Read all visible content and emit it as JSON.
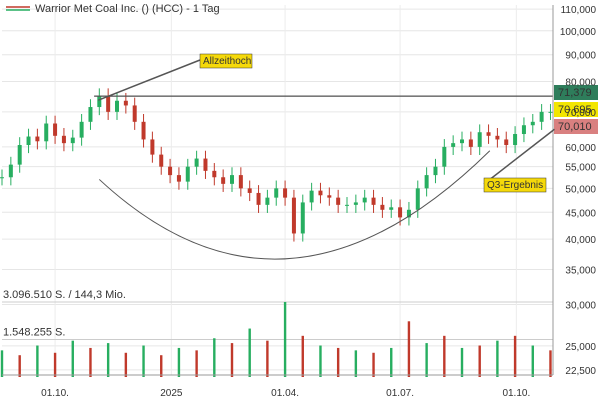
{
  "chart_data": {
    "type": "candlestick",
    "title": "Warrior Met Coal Inc. () (HCC) - 1 Tag",
    "y_axis": {
      "scale": "log",
      "ticks": [
        "110,000",
        "100,000",
        "90,000",
        "80,000",
        "70,000",
        "60,000",
        "55,000",
        "50,000",
        "45,000",
        "40,000",
        "35,000",
        "30,000",
        "25,000",
        "22,500"
      ],
      "tick_values": [
        110,
        100,
        90,
        80,
        70,
        60,
        55,
        50,
        45,
        40,
        35,
        30,
        25,
        22.5
      ],
      "ylim": [
        22,
        112
      ]
    },
    "x_axis": {
      "ticks": [
        "01.10.",
        "2025",
        "01.04.",
        "01.07.",
        "01.10."
      ],
      "tick_dates": [
        "2024-10-01",
        "2025-01-01",
        "2025-04-01",
        "2025-07-01",
        "2025-10-01"
      ],
      "range": [
        "2024-08-20",
        "2025-10-30"
      ]
    },
    "price_series": {
      "name": "HCC",
      "x": [
        "2024-08-20",
        "2024-08-27",
        "2024-09-03",
        "2024-09-10",
        "2024-09-17",
        "2024-09-24",
        "2024-10-01",
        "2024-10-08",
        "2024-10-15",
        "2024-10-22",
        "2024-10-29",
        "2024-11-05",
        "2024-11-12",
        "2024-11-19",
        "2024-11-26",
        "2024-12-03",
        "2024-12-10",
        "2024-12-17",
        "2024-12-24",
        "2024-12-31",
        "2025-01-07",
        "2025-01-14",
        "2025-01-21",
        "2025-01-28",
        "2025-02-04",
        "2025-02-11",
        "2025-02-18",
        "2025-02-25",
        "2025-03-04",
        "2025-03-11",
        "2025-03-18",
        "2025-03-25",
        "2025-04-01",
        "2025-04-08",
        "2025-04-15",
        "2025-04-22",
        "2025-04-29",
        "2025-05-06",
        "2025-05-13",
        "2025-05-20",
        "2025-05-27",
        "2025-06-03",
        "2025-06-10",
        "2025-06-17",
        "2025-06-24",
        "2025-07-01",
        "2025-07-08",
        "2025-07-15",
        "2025-07-22",
        "2025-07-29",
        "2025-08-05",
        "2025-08-12",
        "2025-08-19",
        "2025-08-26",
        "2025-09-02",
        "2025-09-09",
        "2025-09-16",
        "2025-09-23",
        "2025-09-30",
        "2025-10-07",
        "2025-10-14",
        "2025-10-21",
        "2025-10-28"
      ],
      "close": [
        52.5,
        55.5,
        60.5,
        62.8,
        61.5,
        66.5,
        63,
        61,
        62.5,
        67,
        71.5,
        75,
        70,
        73.5,
        72,
        67,
        62,
        58,
        55,
        53,
        51.5,
        55,
        57,
        54,
        52.5,
        51,
        53,
        50,
        49,
        46.5,
        48,
        50,
        48,
        41,
        47,
        49.5,
        48.5,
        48,
        46.5,
        46.5,
        47,
        48,
        46.5,
        45.5,
        46,
        44,
        45.5,
        50,
        53,
        55,
        60,
        61,
        62,
        60,
        64,
        63,
        62,
        60.5,
        63.5,
        66,
        67,
        70,
        70
      ]
    },
    "volume_axis": {
      "ticks": [
        "3.096.510 S. / 144,3 Mio.",
        "1.548.255 S."
      ],
      "tick_values": [
        3096510,
        1548255
      ]
    },
    "volume_series": {
      "x": [
        "2024-08-20",
        "2024-09-03",
        "2024-09-17",
        "2024-10-01",
        "2024-10-15",
        "2024-10-29",
        "2024-11-12",
        "2024-11-26",
        "2024-12-10",
        "2024-12-24",
        "2025-01-07",
        "2025-01-21",
        "2025-02-04",
        "2025-02-18",
        "2025-03-04",
        "2025-03-18",
        "2025-04-01",
        "2025-04-15",
        "2025-04-29",
        "2025-05-13",
        "2025-05-27",
        "2025-06-10",
        "2025-06-24",
        "2025-07-08",
        "2025-07-22",
        "2025-08-05",
        "2025-08-19",
        "2025-09-02",
        "2025-09-16",
        "2025-09-30",
        "2025-10-14",
        "2025-10-28"
      ],
      "values": [
        1100000,
        900000,
        1300000,
        1000000,
        1500000,
        1200000,
        1400000,
        1000000,
        1300000,
        900000,
        1200000,
        1100000,
        1600000,
        1400000,
        2000000,
        1500000,
        3096510,
        1700000,
        1300000,
        1200000,
        1100000,
        1000000,
        1200000,
        2300000,
        1400000,
        1700000,
        1200000,
        1300000,
        1500000,
        1700000,
        1300000,
        1100000
      ]
    },
    "reference_lines": [
      {
        "label": "71,379",
        "value": 71.379,
        "color": "#2e7d5b"
      },
      {
        "label": "70,695",
        "value": 70.695,
        "color": "#f2e600"
      },
      {
        "label": "70,010",
        "value": 70.01,
        "color": "#d98080"
      }
    ],
    "annotations": [
      {
        "text": "Allzeithoch",
        "x": "2024-11-01",
        "y": 75
      },
      {
        "text": "Q3-Ergebnis",
        "x": "2025-10-28",
        "y": 66
      }
    ],
    "grid": true
  }
}
